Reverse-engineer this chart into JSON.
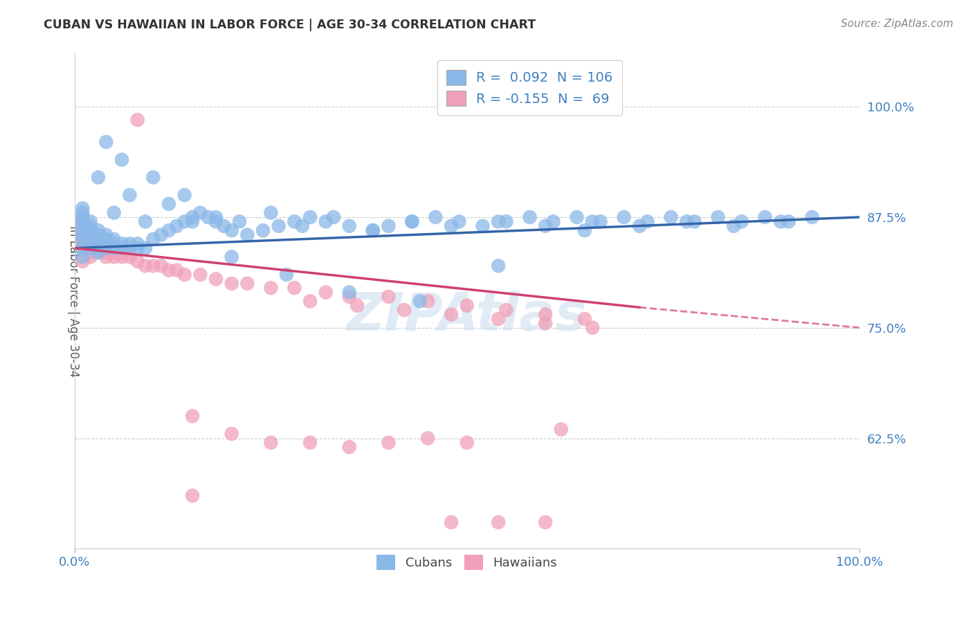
{
  "title": "CUBAN VS HAWAIIAN IN LABOR FORCE | AGE 30-34 CORRELATION CHART",
  "source_text": "Source: ZipAtlas.com",
  "ylabel": "In Labor Force | Age 30-34",
  "watermark": "ZIPAtlas",
  "xlim": [
    0.0,
    1.0
  ],
  "ylim": [
    0.5,
    1.06
  ],
  "yticks": [
    0.625,
    0.75,
    0.875,
    1.0
  ],
  "ytick_labels": [
    "62.5%",
    "75.0%",
    "87.5%",
    "100.0%"
  ],
  "xtick_labels": [
    "0.0%",
    "100.0%"
  ],
  "legend_r_cuban": " 0.092",
  "legend_n_cuban": "106",
  "legend_r_hawaiian": "-0.155",
  "legend_n_hawaiian": " 69",
  "cuban_color": "#8AB8E8",
  "hawaiian_color": "#F0A0B8",
  "trend_cuban_color": "#3465A8",
  "trend_hawaiian_color": "#D04070",
  "background_color": "#FFFFFF",
  "grid_color": "#CCCCCC",
  "title_color": "#333333",
  "axis_label_color": "#4080C0",
  "cuban_trend_x0": 0.0,
  "cuban_trend_y0": 0.84,
  "cuban_trend_x1": 1.0,
  "cuban_trend_y1": 0.875,
  "hawaiian_trend_x0": 0.0,
  "hawaiian_trend_y0": 0.84,
  "hawaiian_trend_x1_solid": 0.72,
  "hawaiian_trend_y1_solid": 0.773,
  "hawaiian_trend_x1_dash": 1.0,
  "hawaiian_trend_y1_dash": 0.75,
  "cuban_x": [
    0.01,
    0.01,
    0.01,
    0.01,
    0.01,
    0.01,
    0.01,
    0.01,
    0.01,
    0.01,
    0.02,
    0.02,
    0.02,
    0.02,
    0.02,
    0.02,
    0.02,
    0.03,
    0.03,
    0.03,
    0.03,
    0.03,
    0.03,
    0.04,
    0.04,
    0.04,
    0.04,
    0.05,
    0.05,
    0.05,
    0.06,
    0.06,
    0.07,
    0.07,
    0.08,
    0.08,
    0.09,
    0.1,
    0.11,
    0.12,
    0.13,
    0.14,
    0.15,
    0.16,
    0.17,
    0.18,
    0.19,
    0.2,
    0.22,
    0.24,
    0.26,
    0.28,
    0.3,
    0.32,
    0.35,
    0.38,
    0.4,
    0.43,
    0.46,
    0.49,
    0.52,
    0.55,
    0.58,
    0.61,
    0.64,
    0.67,
    0.7,
    0.73,
    0.76,
    0.79,
    0.82,
    0.85,
    0.88,
    0.91,
    0.94,
    0.03,
    0.05,
    0.07,
    0.09,
    0.12,
    0.15,
    0.18,
    0.21,
    0.25,
    0.29,
    0.33,
    0.38,
    0.43,
    0.48,
    0.54,
    0.6,
    0.66,
    0.72,
    0.78,
    0.84,
    0.9,
    0.04,
    0.06,
    0.1,
    0.14,
    0.2,
    0.27,
    0.35,
    0.44,
    0.54,
    0.65
  ],
  "cuban_y": [
    0.84,
    0.85,
    0.855,
    0.86,
    0.865,
    0.87,
    0.875,
    0.88,
    0.885,
    0.83,
    0.84,
    0.845,
    0.85,
    0.855,
    0.86,
    0.865,
    0.87,
    0.835,
    0.84,
    0.845,
    0.85,
    0.855,
    0.86,
    0.84,
    0.845,
    0.85,
    0.855,
    0.84,
    0.845,
    0.85,
    0.84,
    0.845,
    0.84,
    0.845,
    0.84,
    0.845,
    0.84,
    0.85,
    0.855,
    0.86,
    0.865,
    0.87,
    0.875,
    0.88,
    0.875,
    0.87,
    0.865,
    0.86,
    0.855,
    0.86,
    0.865,
    0.87,
    0.875,
    0.87,
    0.865,
    0.86,
    0.865,
    0.87,
    0.875,
    0.87,
    0.865,
    0.87,
    0.875,
    0.87,
    0.875,
    0.87,
    0.875,
    0.87,
    0.875,
    0.87,
    0.875,
    0.87,
    0.875,
    0.87,
    0.875,
    0.92,
    0.88,
    0.9,
    0.87,
    0.89,
    0.87,
    0.875,
    0.87,
    0.88,
    0.865,
    0.875,
    0.86,
    0.87,
    0.865,
    0.87,
    0.865,
    0.87,
    0.865,
    0.87,
    0.865,
    0.87,
    0.96,
    0.94,
    0.92,
    0.9,
    0.83,
    0.81,
    0.79,
    0.78,
    0.82,
    0.86
  ],
  "hawaiian_x": [
    0.01,
    0.01,
    0.01,
    0.01,
    0.01,
    0.01,
    0.01,
    0.01,
    0.01,
    0.02,
    0.02,
    0.02,
    0.02,
    0.02,
    0.02,
    0.03,
    0.03,
    0.03,
    0.04,
    0.04,
    0.04,
    0.05,
    0.05,
    0.06,
    0.06,
    0.07,
    0.07,
    0.08,
    0.09,
    0.1,
    0.11,
    0.12,
    0.13,
    0.14,
    0.16,
    0.18,
    0.2,
    0.22,
    0.25,
    0.28,
    0.32,
    0.35,
    0.4,
    0.45,
    0.5,
    0.55,
    0.6,
    0.65,
    0.15,
    0.2,
    0.25,
    0.3,
    0.35,
    0.4,
    0.45,
    0.5,
    0.3,
    0.36,
    0.42,
    0.48,
    0.54,
    0.6,
    0.66,
    0.48,
    0.54,
    0.6,
    0.15,
    0.08,
    0.62
  ],
  "hawaiian_y": [
    0.84,
    0.845,
    0.85,
    0.855,
    0.86,
    0.865,
    0.87,
    0.875,
    0.825,
    0.835,
    0.84,
    0.845,
    0.85,
    0.855,
    0.83,
    0.835,
    0.84,
    0.845,
    0.83,
    0.835,
    0.84,
    0.83,
    0.835,
    0.83,
    0.835,
    0.83,
    0.835,
    0.825,
    0.82,
    0.82,
    0.82,
    0.815,
    0.815,
    0.81,
    0.81,
    0.805,
    0.8,
    0.8,
    0.795,
    0.795,
    0.79,
    0.785,
    0.785,
    0.78,
    0.775,
    0.77,
    0.765,
    0.76,
    0.65,
    0.63,
    0.62,
    0.62,
    0.615,
    0.62,
    0.625,
    0.62,
    0.78,
    0.775,
    0.77,
    0.765,
    0.76,
    0.755,
    0.75,
    0.53,
    0.53,
    0.53,
    0.56,
    0.985,
    0.635
  ]
}
